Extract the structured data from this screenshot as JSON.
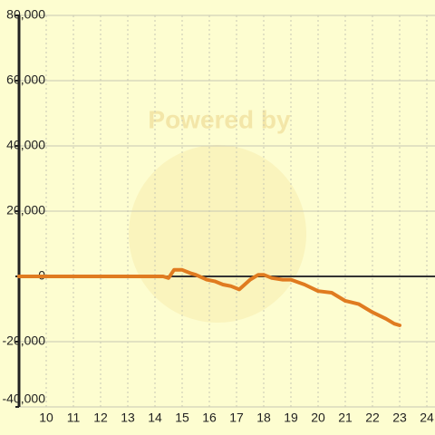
{
  "chart_data": {
    "type": "line",
    "watermark": "Powered by",
    "x": [
      9,
      14.3,
      14.5,
      14.7,
      15,
      15.3,
      15.5,
      15.9,
      16.2,
      16.5,
      16.8,
      17.1,
      17.5,
      17.8,
      18,
      18.3,
      18.7,
      19,
      19.5,
      20,
      20.5,
      21,
      21.5,
      22,
      22.5,
      22.8,
      23
    ],
    "series": [
      {
        "color": "#e07b20",
        "values": [
          0,
          0,
          -500,
          2000,
          2000,
          1000,
          500,
          -1000,
          -1500,
          -2500,
          -3000,
          -4000,
          -1000,
          500,
          500,
          -500,
          -1000,
          -1000,
          -2500,
          -4500,
          -5000,
          -7500,
          -8500,
          -11000,
          -13000,
          -14500,
          -15000
        ]
      }
    ],
    "xlim": [
      9,
      24.3
    ],
    "xticks": [
      10,
      11,
      12,
      13,
      14,
      15,
      16,
      17,
      18,
      19,
      20,
      21,
      22,
      23,
      24
    ],
    "ylim": [
      -40000,
      80000
    ],
    "yticks": [
      {
        "value": -40000,
        "label": "-40,000"
      },
      {
        "value": -20000,
        "label": "-20,000"
      },
      0,
      {
        "value": 20000,
        "label": "20,000"
      },
      {
        "value": 40000,
        "label": "40,000"
      },
      {
        "value": 60000,
        "label": "60,000"
      },
      {
        "value": 80000,
        "label": "80,000"
      }
    ],
    "grid": true
  }
}
